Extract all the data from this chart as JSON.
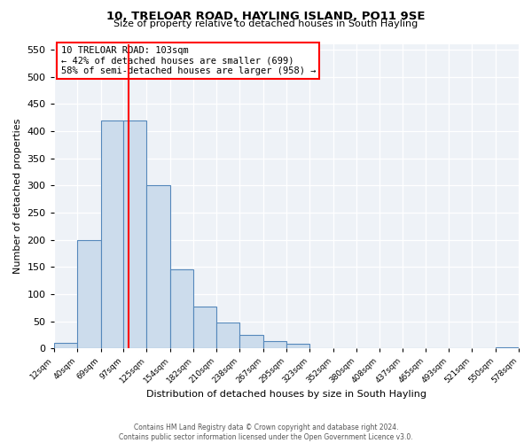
{
  "title": "10, TRELOAR ROAD, HAYLING ISLAND, PO11 9SE",
  "subtitle": "Size of property relative to detached houses in South Hayling",
  "xlabel": "Distribution of detached houses by size in South Hayling",
  "ylabel": "Number of detached properties",
  "bar_edges": [
    12,
    40,
    69,
    97,
    125,
    154,
    182,
    210,
    238,
    267,
    295,
    323,
    352,
    380,
    408,
    437,
    465,
    493,
    521,
    550,
    578
  ],
  "bar_heights": [
    10,
    200,
    420,
    420,
    300,
    145,
    78,
    48,
    25,
    13,
    8,
    0,
    0,
    0,
    0,
    0,
    0,
    0,
    0,
    2
  ],
  "bar_color": "#ccdcec",
  "bar_edgecolor": "#5588bb",
  "vline_x": 103,
  "vline_color": "red",
  "ylim": [
    0,
    560
  ],
  "yticks": [
    0,
    50,
    100,
    150,
    200,
    250,
    300,
    350,
    400,
    450,
    500,
    550
  ],
  "xtick_labels": [
    "12sqm",
    "40sqm",
    "69sqm",
    "97sqm",
    "125sqm",
    "154sqm",
    "182sqm",
    "210sqm",
    "238sqm",
    "267sqm",
    "295sqm",
    "323sqm",
    "352sqm",
    "380sqm",
    "408sqm",
    "437sqm",
    "465sqm",
    "493sqm",
    "521sqm",
    "550sqm",
    "578sqm"
  ],
  "annotation_title": "10 TRELOAR ROAD: 103sqm",
  "annotation_line1": "← 42% of detached houses are smaller (699)",
  "annotation_line2": "58% of semi-detached houses are larger (958) →",
  "footer1": "Contains HM Land Registry data © Crown copyright and database right 2024.",
  "footer2": "Contains public sector information licensed under the Open Government Licence v3.0.",
  "bg_color": "#eef2f7"
}
